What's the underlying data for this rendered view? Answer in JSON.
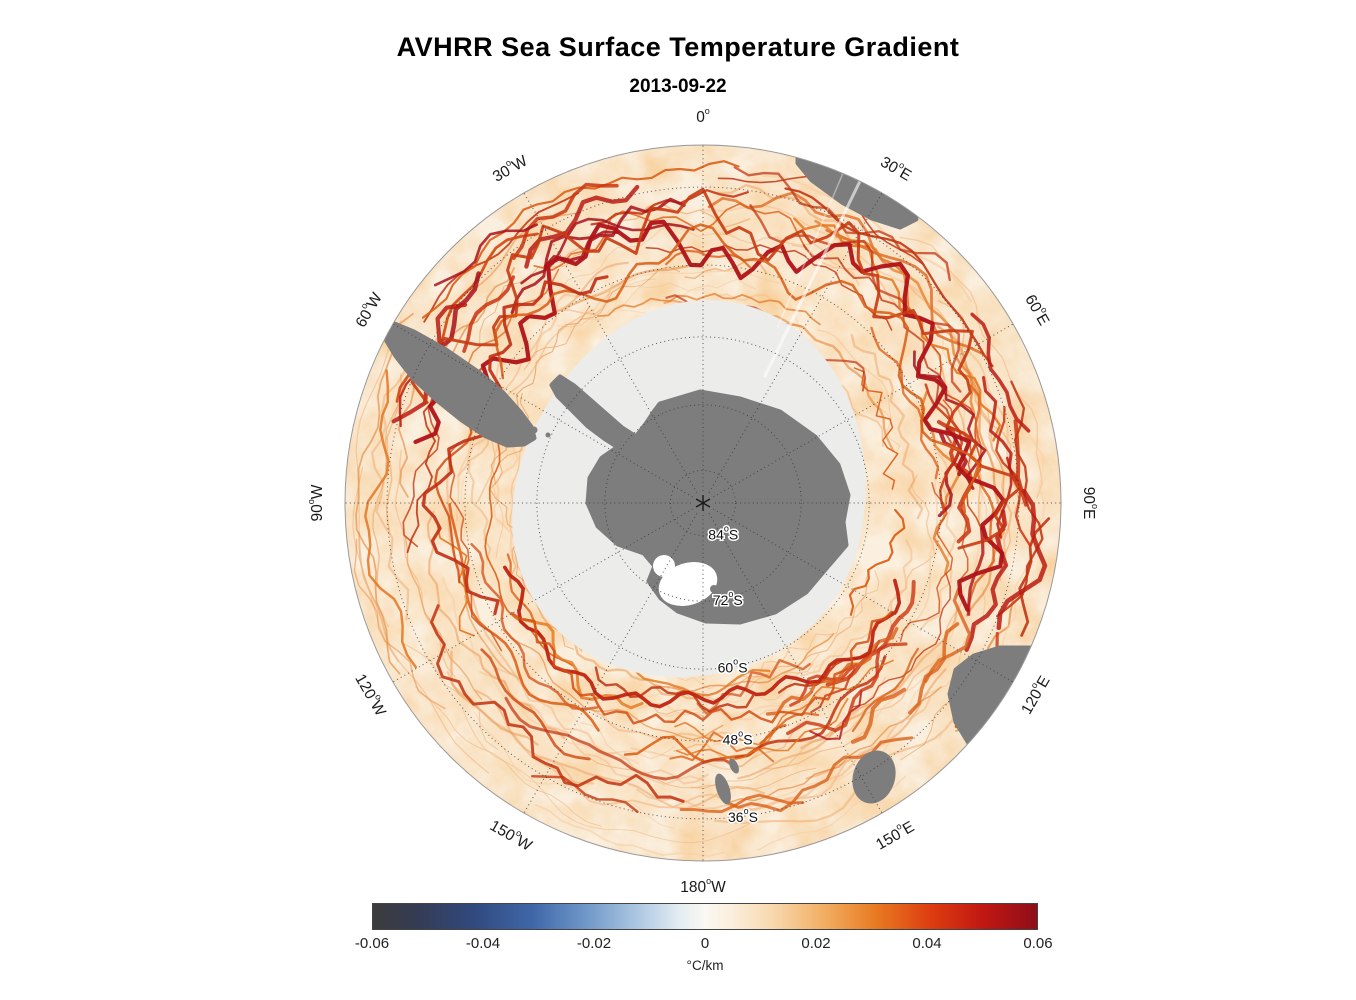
{
  "figure": {
    "title": "AVHRR Sea Surface Temperature Gradient",
    "subtitle": "2013-09-22"
  },
  "chart_data": {
    "type": "heatmap",
    "title": "AVHRR Sea Surface Temperature Gradient",
    "subtitle": "2013-09-22",
    "projection": "south polar stereographic",
    "lat_limits": [
      -90,
      -30
    ],
    "grid": "dotted",
    "meridian_labels": [
      {
        "text": "0°",
        "lon": 0
      },
      {
        "text": "30°E",
        "lon": 30
      },
      {
        "text": "60°E",
        "lon": 60
      },
      {
        "text": "90°E",
        "lon": 90
      },
      {
        "text": "120°E",
        "lon": 120
      },
      {
        "text": "150°E",
        "lon": 150
      },
      {
        "text": "180°W",
        "lon": 180
      },
      {
        "text": "150°W",
        "lon": -150
      },
      {
        "text": "120°W",
        "lon": -120
      },
      {
        "text": "90°W",
        "lon": -90
      },
      {
        "text": "60°W",
        "lon": -60
      },
      {
        "text": "30°W",
        "lon": -30
      }
    ],
    "parallel_labels": [
      {
        "text": "84°S",
        "lat": -84
      },
      {
        "text": "72°S",
        "lat": -72
      },
      {
        "text": "60°S",
        "lat": -60
      },
      {
        "text": "48°S",
        "lat": -48
      },
      {
        "text": "36°S",
        "lat": -36
      }
    ],
    "colorbar": {
      "label": "°C/km",
      "min": -0.06,
      "max": 0.06,
      "ticks": [
        "-0.06",
        "-0.04",
        "-0.02",
        "0",
        "0.02",
        "0.04",
        "0.06"
      ],
      "gradient_stops": [
        [
          "0%",
          "#3c3c3c"
        ],
        [
          "7%",
          "#343c55"
        ],
        [
          "15%",
          "#31497e"
        ],
        [
          "24%",
          "#3f67a8"
        ],
        [
          "32%",
          "#6f97c8"
        ],
        [
          "40%",
          "#aec8e2"
        ],
        [
          "46%",
          "#e2ecf2"
        ],
        [
          "50%",
          "#faf8f2"
        ],
        [
          "54%",
          "#fbeedd"
        ],
        [
          "60%",
          "#f8d9b0"
        ],
        [
          "68%",
          "#f2ae62"
        ],
        [
          "76%",
          "#e87820"
        ],
        [
          "84%",
          "#dd3d10"
        ],
        [
          "92%",
          "#c01712"
        ],
        [
          "100%",
          "#8e0e18"
        ]
      ]
    },
    "colors": {
      "ocean_base": "#fbf1e2",
      "sea_ice": "#ececea",
      "land": "#7d7d7d",
      "front_strong": "#a8101a",
      "front_medium": "#d14a12",
      "front_faint": "#f0b07a",
      "grid_line": "#3a3a3a"
    },
    "legend_position": "bottom"
  }
}
